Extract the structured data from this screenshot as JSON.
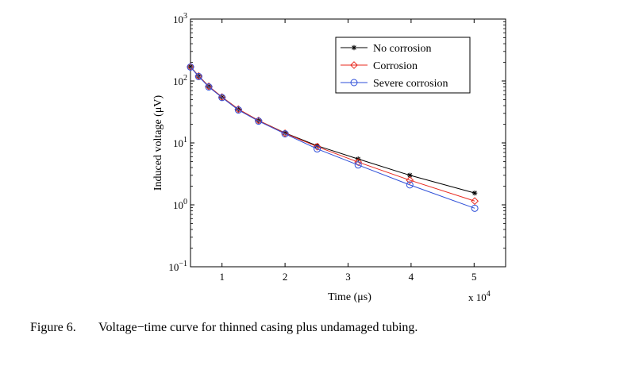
{
  "caption": {
    "number": "Figure 6.",
    "text": "Voltage−time curve for thinned casing plus undamaged tubing."
  },
  "chart_data": {
    "type": "line",
    "title": "",
    "xlabel": "Time (μs)",
    "ylabel": "Induced voltage (μV)",
    "x_multiplier_label": "x 10^4",
    "x_multiplier_base": "x 10",
    "x_multiplier_exp": "4",
    "xlim": [
      0.5,
      5.5
    ],
    "ylim": [
      0.1,
      1000
    ],
    "yscale": "log",
    "xticks": [
      1,
      2,
      3,
      4,
      5
    ],
    "xtick_labels": [
      "1",
      "2",
      "3",
      "4",
      "5"
    ],
    "yticks": [
      0.1,
      1,
      10,
      100,
      1000
    ],
    "ytick_labels": [
      {
        "base": "10",
        "exp": "−1"
      },
      {
        "base": "10",
        "exp": "0"
      },
      {
        "base": "10",
        "exp": "1"
      },
      {
        "base": "10",
        "exp": "2"
      },
      {
        "base": "10",
        "exp": "3"
      }
    ],
    "grid": false,
    "legend_position": "top-right",
    "series": [
      {
        "name": "No corrosion",
        "color": "#000000",
        "marker": "star",
        "x": [
          0.5,
          0.63,
          0.79,
          1.0,
          1.26,
          1.58,
          2.0,
          2.51,
          3.16,
          3.98,
          5.01
        ],
        "y": [
          170,
          120,
          82,
          55,
          35,
          23,
          14.5,
          9.0,
          5.5,
          3.0,
          1.55
        ]
      },
      {
        "name": "Corrosion",
        "color": "#e8281e",
        "marker": "diamond",
        "x": [
          0.5,
          0.63,
          0.79,
          1.0,
          1.26,
          1.58,
          2.0,
          2.51,
          3.16,
          3.98,
          5.01
        ],
        "y": [
          170,
          120,
          82,
          55,
          35,
          23,
          14.3,
          8.7,
          4.9,
          2.5,
          1.15
        ]
      },
      {
        "name": "Severe corrosion",
        "color": "#2e4fd8",
        "marker": "circle",
        "x": [
          0.5,
          0.63,
          0.79,
          1.0,
          1.26,
          1.58,
          2.0,
          2.51,
          3.16,
          3.98,
          5.01
        ],
        "y": [
          168,
          118,
          80,
          54,
          34,
          22.5,
          14.0,
          8.0,
          4.4,
          2.1,
          0.88
        ]
      }
    ]
  }
}
